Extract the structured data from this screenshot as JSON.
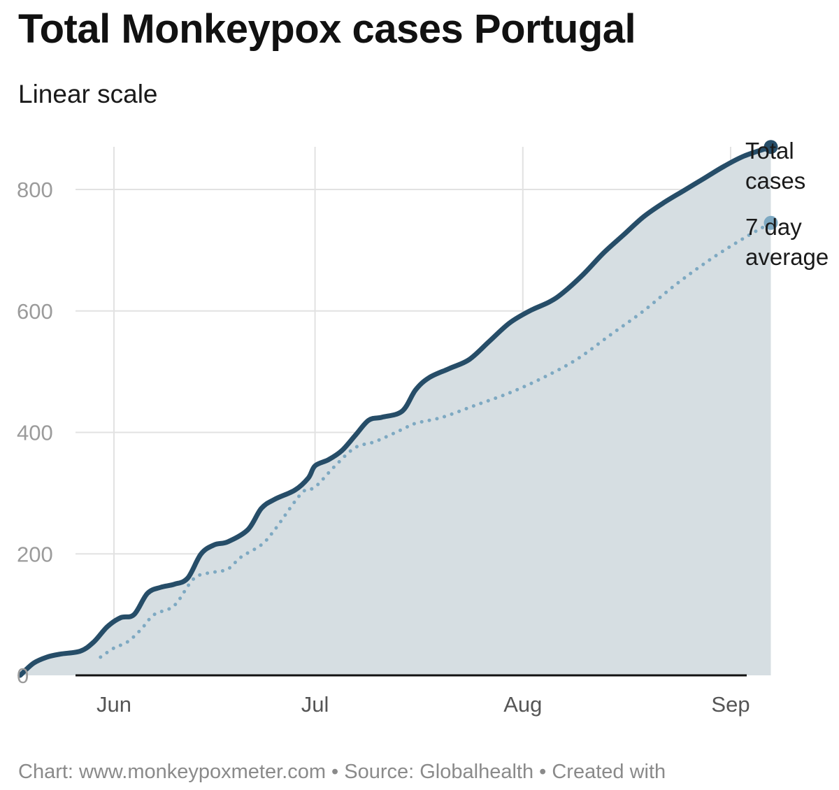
{
  "title": "Total Monkeypox cases Portugal",
  "subtitle": "Linear scale",
  "footer": "Chart: www.monkeypoxmeter.com • Source: Globalhealth • Created with",
  "colors": {
    "total_line": "#264d68",
    "area_fill": "#d6dee2",
    "avg_line": "#7ea9c2",
    "grid": "#e2e2e2",
    "baseline": "#111111"
  },
  "chart_data": {
    "type": "area",
    "x_axis": {
      "type": "date",
      "range": [
        "2022-05-15",
        "2022-09-01"
      ],
      "ticks": [
        {
          "date": "2022-06-01",
          "label": "Jun"
        },
        {
          "date": "2022-07-01",
          "label": "Jul"
        },
        {
          "date": "2022-08-01",
          "label": "Aug"
        },
        {
          "date": "2022-09-01",
          "label": "Sep"
        }
      ]
    },
    "y_axis": {
      "range": [
        0,
        900
      ],
      "ticks": [
        0,
        200,
        400,
        600,
        800
      ]
    },
    "grid": true,
    "legend_placement": "right-end-of-lines",
    "series": [
      {
        "name": "Total cases",
        "style": "solid-area",
        "points": [
          [
            "2022-05-18",
            0
          ],
          [
            "2022-05-20",
            20
          ],
          [
            "2022-05-22",
            30
          ],
          [
            "2022-05-24",
            35
          ],
          [
            "2022-05-27",
            40
          ],
          [
            "2022-05-29",
            55
          ],
          [
            "2022-05-31",
            80
          ],
          [
            "2022-06-02",
            95
          ],
          [
            "2022-06-04",
            100
          ],
          [
            "2022-06-06",
            135
          ],
          [
            "2022-06-08",
            145
          ],
          [
            "2022-06-10",
            150
          ],
          [
            "2022-06-12",
            160
          ],
          [
            "2022-06-14",
            200
          ],
          [
            "2022-06-16",
            215
          ],
          [
            "2022-06-18",
            220
          ],
          [
            "2022-06-21",
            240
          ],
          [
            "2022-06-23",
            275
          ],
          [
            "2022-06-25",
            290
          ],
          [
            "2022-06-28",
            305
          ],
          [
            "2022-06-30",
            325
          ],
          [
            "2022-07-01",
            345
          ],
          [
            "2022-07-03",
            355
          ],
          [
            "2022-07-05",
            370
          ],
          [
            "2022-07-07",
            395
          ],
          [
            "2022-07-09",
            420
          ],
          [
            "2022-07-11",
            425
          ],
          [
            "2022-07-14",
            435
          ],
          [
            "2022-07-16",
            470
          ],
          [
            "2022-07-18",
            490
          ],
          [
            "2022-07-21",
            505
          ],
          [
            "2022-07-24",
            520
          ],
          [
            "2022-07-27",
            550
          ],
          [
            "2022-07-30",
            580
          ],
          [
            "2022-08-02",
            600
          ],
          [
            "2022-08-05",
            615
          ],
          [
            "2022-08-07",
            630
          ],
          [
            "2022-08-10",
            660
          ],
          [
            "2022-08-13",
            695
          ],
          [
            "2022-08-16",
            725
          ],
          [
            "2022-08-19",
            755
          ],
          [
            "2022-08-22",
            778
          ],
          [
            "2022-08-25",
            798
          ],
          [
            "2022-08-28",
            818
          ],
          [
            "2022-08-31",
            838
          ],
          [
            "2022-09-03",
            855
          ],
          [
            "2022-09-07",
            870
          ]
        ]
      },
      {
        "name": "7 day average",
        "style": "dotted",
        "points": [
          [
            "2022-05-30",
            30
          ],
          [
            "2022-06-01",
            45
          ],
          [
            "2022-06-03",
            55
          ],
          [
            "2022-06-05",
            75
          ],
          [
            "2022-06-07",
            100
          ],
          [
            "2022-06-10",
            115
          ],
          [
            "2022-06-13",
            160
          ],
          [
            "2022-06-16",
            170
          ],
          [
            "2022-06-18",
            175
          ],
          [
            "2022-06-20",
            195
          ],
          [
            "2022-06-23",
            215
          ],
          [
            "2022-06-25",
            240
          ],
          [
            "2022-06-29",
            300
          ],
          [
            "2022-07-01",
            310
          ],
          [
            "2022-07-04",
            345
          ],
          [
            "2022-07-07",
            375
          ],
          [
            "2022-07-10",
            385
          ],
          [
            "2022-07-14",
            405
          ],
          [
            "2022-07-16",
            415
          ],
          [
            "2022-07-20",
            425
          ],
          [
            "2022-07-25",
            445
          ],
          [
            "2022-07-30",
            465
          ],
          [
            "2022-08-04",
            490
          ],
          [
            "2022-08-09",
            520
          ],
          [
            "2022-08-14",
            560
          ],
          [
            "2022-08-19",
            600
          ],
          [
            "2022-08-24",
            645
          ],
          [
            "2022-08-29",
            685
          ],
          [
            "2022-09-03",
            720
          ],
          [
            "2022-09-07",
            745
          ]
        ]
      }
    ]
  }
}
